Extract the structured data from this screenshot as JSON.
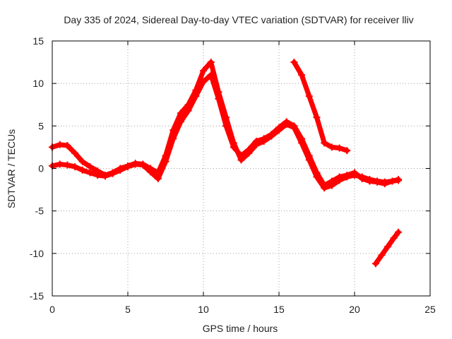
{
  "chart_data": {
    "type": "scatter",
    "title": "Day 335 of 2024, Sidereal Day-to-day VTEC variation (SDTVAR) for receiver lliv",
    "xlabel": "GPS time / hours",
    "ylabel": "SDTVAR / TECUs",
    "xlim": [
      0,
      25
    ],
    "ylim": [
      -15,
      15
    ],
    "xticks": [
      0,
      5,
      10,
      15,
      20,
      25
    ],
    "yticks": [
      -15,
      -10,
      -5,
      0,
      5,
      10,
      15
    ],
    "grid": true,
    "marker": "+",
    "color": "#ff0000",
    "series": [
      {
        "x": [
          0.0,
          0.5,
          1.0,
          1.5,
          2.0,
          2.5,
          3.0,
          3.5,
          4.0,
          4.5,
          5.0,
          5.5,
          6.0,
          6.5,
          7.0,
          7.5,
          8.0,
          8.5,
          9.0,
          9.5,
          10.0,
          10.5,
          11.0,
          11.5,
          12.0,
          12.5,
          13.0,
          13.5,
          14.0,
          14.5,
          15.0,
          15.5,
          16.0,
          16.5,
          17.0,
          17.5,
          18.0,
          18.5,
          19.0,
          19.5,
          20.0,
          20.5,
          21.0,
          21.5,
          22.0,
          22.5,
          22.9
        ],
        "y": [
          0.3,
          0.5,
          0.4,
          0.2,
          -0.2,
          -0.5,
          -0.8,
          -0.9,
          -0.6,
          -0.2,
          0.2,
          0.5,
          0.4,
          -0.4,
          -1.2,
          0.8,
          3.5,
          5.5,
          6.8,
          8.5,
          10.2,
          11.0,
          8.2,
          5.0,
          2.5,
          1.5,
          2.2,
          3.2,
          3.5,
          4.0,
          4.8,
          5.5,
          5.0,
          3.5,
          1.5,
          -0.5,
          -2.0,
          -1.5,
          -1.0,
          -0.8,
          -0.5,
          -1.2,
          -1.5,
          -1.6,
          -1.8,
          -1.5,
          -1.4
        ]
      },
      {
        "x": [
          0.0,
          0.5,
          1.0,
          1.5,
          2.0,
          2.5,
          3.0,
          3.5,
          4.0,
          4.5,
          5.0,
          5.5,
          6.0,
          6.5,
          7.0,
          7.5,
          8.0,
          8.5,
          9.0,
          9.5,
          10.0,
          10.5,
          11.0,
          11.5,
          12.0,
          12.5,
          13.0,
          13.5,
          14.0,
          14.5,
          15.0,
          15.5,
          16.0,
          16.5,
          17.0,
          17.5,
          18.0,
          18.5,
          19.0,
          19.5,
          20.0,
          20.5,
          21.0,
          21.5,
          22.0,
          22.5,
          22.9
        ],
        "y": [
          2.5,
          2.8,
          2.7,
          1.8,
          0.8,
          0.2,
          -0.3,
          -0.8,
          -0.5,
          0.0,
          0.3,
          0.6,
          0.5,
          0.0,
          -0.5,
          1.5,
          4.5,
          6.5,
          7.5,
          9.2,
          11.5,
          12.5,
          9.0,
          6.0,
          3.0,
          1.0,
          1.8,
          2.8,
          3.2,
          3.8,
          4.5,
          5.2,
          4.8,
          3.0,
          1.0,
          -1.0,
          -2.3,
          -2.0,
          -1.4,
          -1.0,
          -0.8,
          -1.0,
          -1.3,
          -1.5,
          -1.6,
          -1.5,
          -1.3
        ]
      },
      {
        "x": [
          16.0,
          16.5,
          17.0,
          17.5,
          18.0,
          18.5,
          19.0,
          19.5
        ],
        "y": [
          12.5,
          11.0,
          8.5,
          6.0,
          3.0,
          2.5,
          2.4,
          2.1
        ]
      },
      {
        "x": [
          21.4,
          21.8,
          22.2,
          22.6,
          22.9
        ],
        "y": [
          -11.2,
          -10.2,
          -9.2,
          -8.2,
          -7.5
        ]
      }
    ]
  }
}
